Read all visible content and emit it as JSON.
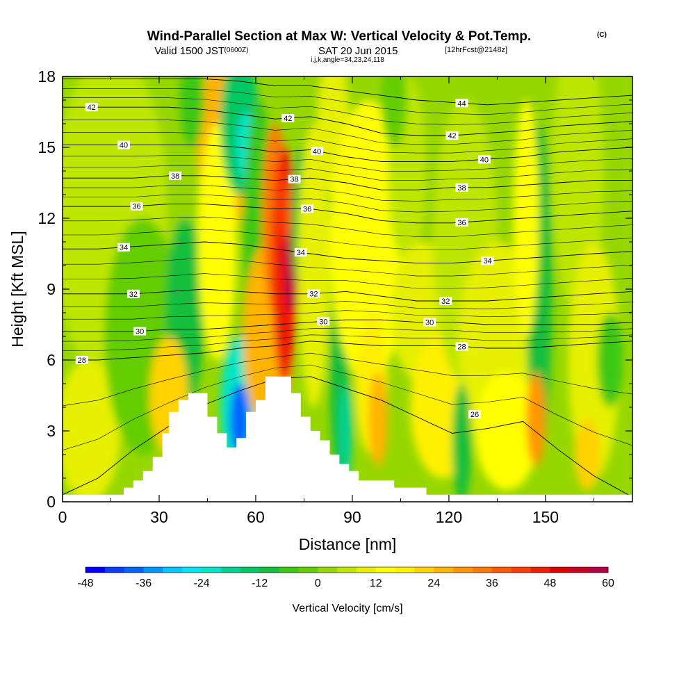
{
  "header": {
    "title": "Wind-Parallel Section at Max W: Vertical Velocity & Pot.Temp.",
    "copyright": "(C)",
    "valid_prefix": "Valid 1500 JST",
    "valid_utc": "(0600Z)",
    "valid_date": "SAT 20 Jun 2015",
    "forecast": "[12hrFcst@2148z]",
    "params": "i,j,k,angle=34,23,24,118"
  },
  "chart_data": {
    "type": "contour-cross-section",
    "xlabel": "Distance [nm]",
    "ylabel": "Height [Kft MSL]",
    "xlim": [
      0,
      177
    ],
    "ylim": [
      0,
      18
    ],
    "x_ticks": [
      "0",
      "30",
      "60",
      "90",
      "120",
      "150"
    ],
    "y_ticks": [
      "0",
      "3",
      "6",
      "9",
      "12",
      "15",
      "18"
    ],
    "colorbar": {
      "label": "Vertical Velocity [cm/s]",
      "min": -48,
      "max": 60,
      "step": 4,
      "tick_labels": [
        "-48",
        "-36",
        "-24",
        "-12",
        "0",
        "12",
        "24",
        "36",
        "48",
        "60"
      ],
      "colors": [
        "#0000ff",
        "#0a3cff",
        "#0064ff",
        "#0096ff",
        "#00c8ff",
        "#00e6f0",
        "#00e6c8",
        "#00d296",
        "#00c864",
        "#14be3c",
        "#3cc814",
        "#64cd00",
        "#96d700",
        "#bee600",
        "#e6f000",
        "#ffff00",
        "#fff000",
        "#ffd200",
        "#ffb400",
        "#ff9600",
        "#ff7800",
        "#ff5a00",
        "#ff3c00",
        "#f01e00",
        "#dc0000",
        "#c8001e",
        "#b40046",
        "#a00064",
        "#8c0082",
        "#7800a0",
        "#6400b4"
      ]
    },
    "isentropes": [
      {
        "theta": "26",
        "h": [
          0.3,
          1.0,
          2.2,
          3.2,
          4.1,
          4.7,
          5.2,
          5.3,
          4.8,
          4.3,
          3.6,
          2.9,
          3.1,
          3.4,
          2.2,
          1.1,
          0.2
        ]
      },
      {
        "theta": "28",
        "h": [
          6.0,
          6.0,
          6.1,
          6.2,
          6.3,
          6.5,
          6.6,
          6.8,
          6.7,
          6.6,
          6.6,
          6.6,
          6.5,
          6.5,
          6.6,
          6.7,
          6.8
        ]
      },
      {
        "theta": "30",
        "h": [
          7.2,
          7.2,
          7.2,
          7.3,
          7.3,
          7.4,
          7.5,
          7.6,
          7.7,
          7.7,
          7.6,
          7.6,
          7.5,
          7.5,
          7.5,
          7.5,
          7.6
        ]
      },
      {
        "theta": "32",
        "h": [
          8.8,
          8.8,
          8.8,
          8.9,
          9.0,
          8.9,
          8.8,
          8.8,
          8.9,
          8.7,
          8.5,
          8.5,
          8.5,
          8.6,
          8.7,
          8.8,
          8.9
        ]
      },
      {
        "theta": "34",
        "h": [
          10.7,
          10.7,
          10.8,
          10.9,
          11.0,
          10.9,
          10.7,
          10.5,
          10.3,
          10.2,
          10.1,
          10.1,
          10.2,
          10.3,
          10.4,
          10.5,
          10.6
        ]
      },
      {
        "theta": "36",
        "h": [
          12.5,
          12.5,
          12.5,
          12.6,
          12.6,
          12.5,
          12.4,
          12.4,
          12.2,
          11.9,
          11.8,
          11.8,
          11.9,
          12.0,
          12.1,
          12.2,
          12.3
        ]
      },
      {
        "theta": "38",
        "h": [
          13.7,
          13.7,
          13.7,
          13.8,
          13.8,
          13.7,
          13.6,
          13.7,
          13.5,
          13.2,
          13.2,
          13.3,
          13.3,
          13.4,
          13.5,
          13.6,
          13.6
        ]
      },
      {
        "theta": "40",
        "h": [
          15.1,
          15.1,
          15.1,
          15.1,
          15.1,
          15.0,
          14.8,
          14.9,
          14.6,
          14.4,
          14.4,
          14.4,
          14.5,
          14.6,
          14.8,
          14.9,
          15.0
        ]
      },
      {
        "theta": "42",
        "h": [
          16.7,
          16.7,
          16.7,
          16.7,
          16.6,
          16.4,
          16.2,
          16.3,
          16.0,
          15.6,
          15.5,
          15.5,
          15.6,
          15.7,
          15.9,
          16.0,
          16.1
        ]
      },
      {
        "theta": "44",
        "h": [
          17.9,
          17.9,
          17.9,
          17.9,
          17.9,
          17.8,
          17.6,
          17.6,
          17.4,
          17.2,
          17.0,
          16.9,
          16.8,
          16.9,
          17.0,
          17.1,
          17.2
        ]
      }
    ],
    "isentrope_x": [
      0,
      11,
      22,
      33,
      44,
      55,
      66,
      77,
      88,
      99,
      110,
      121,
      132,
      143,
      154,
      165,
      177
    ],
    "contour_labels": [
      "42",
      "40",
      "38",
      "36",
      "34",
      "32",
      "30",
      "28",
      "42",
      "40",
      "38",
      "36",
      "34",
      "32",
      "30",
      "44",
      "42",
      "40",
      "38",
      "36",
      "34",
      "32",
      "30",
      "28",
      "26"
    ],
    "terrain": {
      "x": [
        0,
        19,
        19,
        22,
        22,
        25,
        25,
        28,
        28,
        31,
        31,
        33,
        33,
        36,
        36,
        39,
        39,
        45,
        45,
        48,
        48,
        51,
        51,
        54,
        54,
        57,
        57,
        60,
        60,
        63,
        63,
        71,
        71,
        74,
        74,
        77,
        77,
        80,
        80,
        83,
        83,
        86,
        86,
        89,
        89,
        92,
        92,
        103,
        103,
        113,
        113,
        177
      ],
      "h": [
        0.3,
        0.3,
        0.6,
        0.6,
        0.9,
        0.9,
        1.3,
        1.3,
        1.9,
        1.9,
        2.9,
        2.9,
        3.8,
        3.8,
        4.3,
        4.3,
        4.6,
        4.6,
        3.6,
        3.6,
        2.9,
        2.9,
        2.3,
        2.3,
        2.7,
        2.7,
        3.8,
        3.8,
        4.3,
        4.3,
        5.3,
        5.3,
        4.6,
        4.6,
        3.6,
        3.6,
        3.0,
        3.0,
        2.6,
        2.6,
        2.0,
        2.0,
        1.6,
        1.6,
        1.3,
        1.3,
        0.9,
        0.9,
        0.6,
        0.6,
        0.3,
        0.3
      ]
    }
  }
}
